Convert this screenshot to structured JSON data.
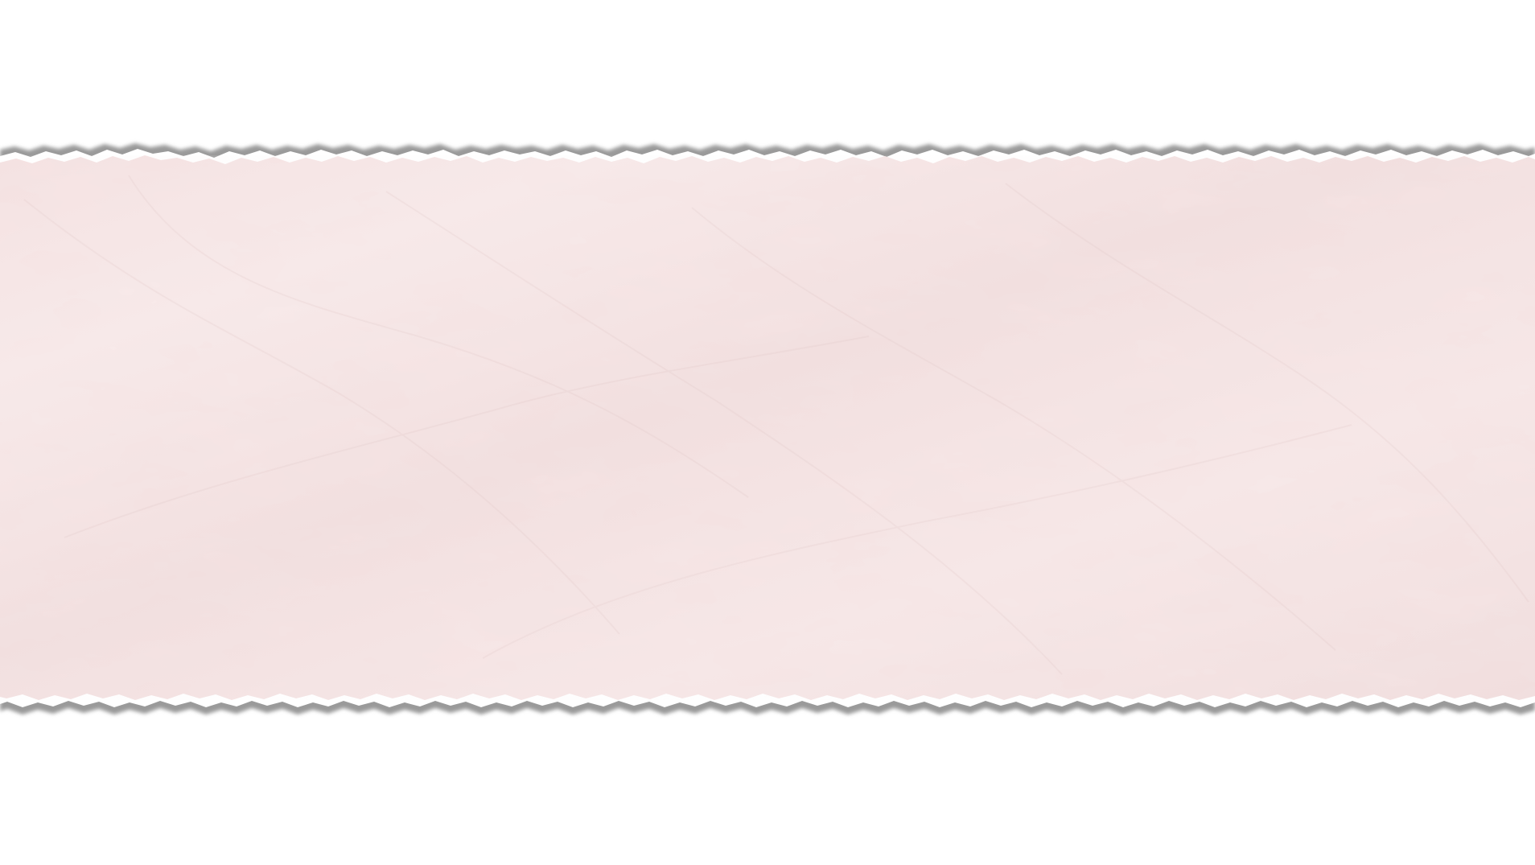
{
  "scene": {
    "background_color": "#ffffff",
    "paper_color": "#f6e6e6",
    "paper_edge_color": "#ffffff",
    "paper_shadow_color": "#8f8f8f",
    "object": "torn-paper-strip"
  }
}
